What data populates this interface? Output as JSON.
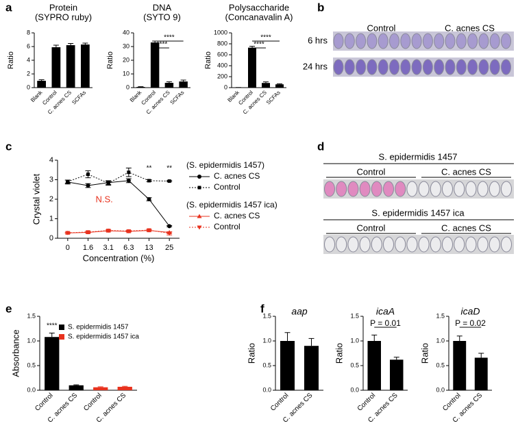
{
  "panel_labels": [
    "a",
    "b",
    "c",
    "d",
    "e",
    "f"
  ],
  "plates": [
    {
      "rows": [
        "6 hrs",
        "24 hrs"
      ],
      "groups": [
        "Control",
        "C. acnes CS"
      ]
    },
    {
      "header": "S. epidermidis 1457",
      "groups": [
        "Control",
        "C. acnes CS"
      ]
    },
    {
      "header": "S. epidermidis 1457  ica",
      "groups": [
        "Control",
        "C. acnes CS"
      ]
    }
  ],
  "chart_data": [
    {
      "type": "bar",
      "title": "Protein",
      "subtitle": "(SYPRO ruby)",
      "ylabel": "Ratio",
      "categories": [
        "Blank",
        "Control",
        "C. acnes CS",
        "SCFAs"
      ],
      "values": [
        1.0,
        5.9,
        6.2,
        6.3
      ],
      "errors": [
        0.15,
        0.3,
        0.25,
        0.2
      ],
      "color": "#000000",
      "ylim": [
        0,
        8
      ],
      "yticks": [
        0,
        2,
        4,
        6,
        8
      ]
    },
    {
      "type": "bar",
      "title": "DNA",
      "subtitle": "(SYTO 9)",
      "ylabel": "Ratio",
      "categories": [
        "Blank",
        "Control",
        "C. acnes CS",
        "SCFAs"
      ],
      "values": [
        0.5,
        33,
        3.5,
        4.5
      ],
      "errors": [
        0.2,
        1,
        0.8,
        1
      ],
      "color": "#000000",
      "ylim": [
        0,
        40
      ],
      "yticks": [
        0,
        10,
        20,
        30,
        40
      ],
      "annotations": [
        {
          "text": "****"
        },
        {
          "text": "****"
        }
      ]
    },
    {
      "type": "bar",
      "title": "Polysaccharide",
      "subtitle": "(Concanavalin A)",
      "ylabel": "Ratio",
      "categories": [
        "Blank",
        "Control",
        "C. acnes CS",
        "SCFAs"
      ],
      "values": [
        2,
        730,
        85,
        60
      ],
      "errors": [
        1,
        25,
        20,
        10
      ],
      "color": "#000000",
      "ylim": [
        0,
        1000
      ],
      "yticks": [
        0,
        200,
        400,
        600,
        800,
        1000
      ],
      "annotations": [
        {
          "text": "****"
        },
        {
          "text": "****"
        }
      ]
    },
    {
      "type": "line",
      "ylabel": "Crystal violet",
      "xlabel": "Concentration (%)",
      "categories": [
        "0",
        "1.6",
        "3.1",
        "6.3",
        "13",
        "25"
      ],
      "ylim": [
        0,
        4
      ],
      "yticks": [
        0,
        1,
        2,
        3,
        4
      ],
      "legend_groups": [
        "(S. epidermidis 1457)",
        "(S. epidermidis 1457   ica)"
      ],
      "series": [
        {
          "name": "C. acnes CS",
          "color": "#000000",
          "marker": "circle",
          "linestyle": "solid",
          "group": 0,
          "values": [
            2.88,
            2.7,
            2.85,
            2.95,
            2.0,
            0.62
          ],
          "errors": [
            0.1,
            0.1,
            0.1,
            0.1,
            0.08,
            0.03
          ]
        },
        {
          "name": "Control",
          "color": "#000000",
          "marker": "square",
          "linestyle": "dotted",
          "group": 0,
          "values": [
            2.9,
            3.28,
            2.82,
            3.38,
            2.95,
            2.93
          ],
          "errors": [
            0.08,
            0.18,
            0.1,
            0.22,
            0.05,
            0.03
          ]
        },
        {
          "name": "C. acnes CS",
          "color": "#e8321e",
          "marker": "triangle",
          "linestyle": "solid",
          "group": 1,
          "values": [
            0.27,
            0.3,
            0.38,
            0.35,
            0.4,
            0.3
          ],
          "errors": [
            0.03,
            0.03,
            0.03,
            0.03,
            0.03,
            0.03
          ]
        },
        {
          "name": "Control",
          "color": "#e8321e",
          "marker": "triangle-down",
          "linestyle": "dotted",
          "group": 1,
          "values": [
            0.28,
            0.32,
            0.4,
            0.37,
            0.42,
            0.25
          ],
          "errors": [
            0.03,
            0.03,
            0.03,
            0.03,
            0.03,
            0.08
          ]
        }
      ],
      "annotations": [
        {
          "text": "**"
        },
        {
          "text": "**"
        },
        {
          "text": "N.S.",
          "color": "#e8321e"
        }
      ]
    },
    {
      "type": "bar",
      "ylabel": "Absorbance",
      "legend": "upper right",
      "categories": [
        "Control",
        "C. acnes CS",
        "Control",
        "C. acnes CS"
      ],
      "ylim": [
        0,
        1.5
      ],
      "yticks": [
        {
          "value": 0,
          "label": "0.0"
        },
        0.5,
        {
          "value": 1,
          "label": "1.0"
        },
        1.5
      ],
      "series": [
        {
          "name": "S. epidermidis 1457",
          "color": "#000000",
          "values": [
            1.08,
            0.1,
            null,
            null
          ],
          "errors": [
            0.08,
            0.01,
            null,
            null
          ]
        },
        {
          "name": "S. epidermidis 1457  ica",
          "color": "#e8321e",
          "values": [
            null,
            null,
            0.06,
            0.07
          ],
          "errors": [
            null,
            null,
            0.01,
            0.01
          ]
        }
      ],
      "annotations": [
        {
          "text": "****"
        }
      ]
    },
    {
      "type": "bar",
      "title": "aap",
      "ylabel": "Ratio",
      "categories": [
        "Control",
        "C. acnes CS"
      ],
      "values": [
        1.0,
        0.9
      ],
      "errors": [
        0.17,
        0.15
      ],
      "color": "#000000",
      "ylim": [
        0,
        1.5
      ],
      "yticks": [
        {
          "value": 0,
          "label": "0.0"
        },
        0.5,
        {
          "value": 1,
          "label": "1.0"
        },
        1.5
      ]
    },
    {
      "type": "bar",
      "title": "icaA",
      "ylabel": "Ratio",
      "categories": [
        "Control",
        "C. acnes CS"
      ],
      "values": [
        1.0,
        0.62
      ],
      "errors": [
        0.12,
        0.05
      ],
      "color": "#000000",
      "ylim": [
        0,
        1.5
      ],
      "yticks": [
        {
          "value": 0,
          "label": "0.0"
        },
        0.5,
        {
          "value": 1,
          "label": "1.0"
        },
        1.5
      ],
      "annotations": [
        {
          "text": "P = 0.01"
        }
      ]
    },
    {
      "type": "bar",
      "title": "icaD",
      "ylabel": "Ratio",
      "categories": [
        "Control",
        "C. acnes CS"
      ],
      "values": [
        1.0,
        0.66
      ],
      "errors": [
        0.1,
        0.09
      ],
      "color": "#000000",
      "ylim": [
        0,
        1.5
      ],
      "yticks": [
        {
          "value": 0,
          "label": "0.0"
        },
        0.5,
        {
          "value": 1,
          "label": "1.0"
        },
        1.5
      ],
      "annotations": [
        {
          "text": "P = 0.02"
        }
      ]
    }
  ]
}
